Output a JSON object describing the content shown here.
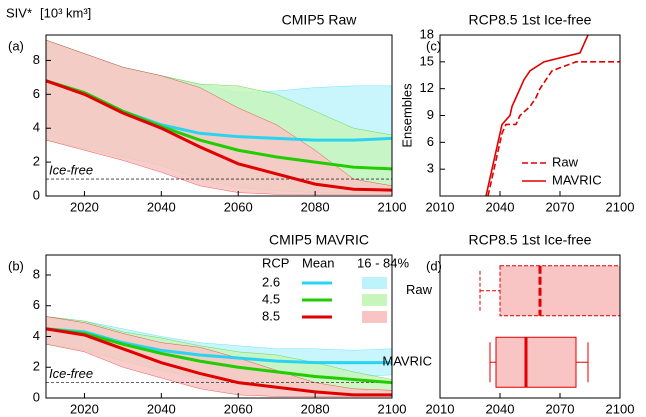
{
  "chart_data": [
    {
      "type": "band-line",
      "panel_label": "(a)",
      "title": "CMIP5 Raw",
      "ylabel": "SIV*",
      "ylabel_unit": "[10³ km³]",
      "x": [
        2010,
        2020,
        2030,
        2040,
        2050,
        2060,
        2070,
        2080,
        2090,
        2100
      ],
      "xlim": [
        2010,
        2100
      ],
      "xticks": [
        2020,
        2040,
        2060,
        2080,
        2100
      ],
      "ylim": [
        0,
        9.5
      ],
      "yticks": [
        0,
        2,
        4,
        6,
        8
      ],
      "threshold": 1,
      "threshold_label": "Ice-free",
      "series": [
        {
          "color": "#2ad4f0",
          "band_color": "#bff3fb",
          "values": [
            6.8,
            6.1,
            5.0,
            4.2,
            3.7,
            3.5,
            3.4,
            3.3,
            3.3,
            3.4
          ],
          "lower": [
            3.3,
            2.8,
            2.4,
            2.0,
            1.5,
            1.2,
            1.1,
            0.9,
            0.6,
            0.7
          ],
          "upper": [
            9.2,
            8.4,
            7.6,
            7.1,
            6.6,
            6.1,
            6.2,
            6.4,
            6.5,
            6.5
          ]
        },
        {
          "color": "#22cc00",
          "band_color": "#c8f5bc",
          "values": [
            6.8,
            6.1,
            5.0,
            4.1,
            3.3,
            2.7,
            2.3,
            2.0,
            1.7,
            1.6
          ],
          "lower": [
            3.3,
            2.8,
            2.3,
            1.8,
            1.0,
            0.5,
            0.3,
            0.2,
            0.2,
            0.2
          ],
          "upper": [
            9.2,
            8.4,
            7.6,
            7.1,
            6.6,
            6.5,
            6.0,
            5.0,
            4.0,
            3.6
          ]
        },
        {
          "color": "#e00000",
          "band_color": "#f9c4c4",
          "values": [
            6.8,
            6.0,
            4.9,
            4.0,
            2.9,
            1.9,
            1.3,
            0.7,
            0.4,
            0.35
          ],
          "lower": [
            3.3,
            2.7,
            2.1,
            1.4,
            0.6,
            0.2,
            0.1,
            0.1,
            0.1,
            0.1
          ],
          "upper": [
            9.2,
            8.4,
            7.6,
            7.1,
            6.4,
            5.2,
            4.2,
            2.7,
            1.0,
            0.6
          ]
        }
      ]
    },
    {
      "type": "band-line",
      "panel_label": "(b)",
      "title": "CMIP5 MAVRIC",
      "x": [
        2010,
        2020,
        2030,
        2040,
        2050,
        2060,
        2070,
        2080,
        2090,
        2100
      ],
      "xlim": [
        2010,
        2100
      ],
      "xticks": [
        2020,
        2040,
        2060,
        2080,
        2100
      ],
      "ylim": [
        0,
        9.3
      ],
      "yticks": [
        0,
        2,
        4,
        6,
        8
      ],
      "threshold": 1,
      "threshold_label": "Ice-free",
      "legend": {
        "title": "RCP",
        "mean_label": "Mean",
        "band_label": "16 - 84%"
      },
      "series": [
        {
          "name": "2.6",
          "color": "#2ad4f0",
          "band_color": "#bff3fb",
          "values": [
            4.5,
            4.3,
            3.6,
            3.1,
            2.8,
            2.6,
            2.4,
            2.3,
            2.3,
            2.3
          ],
          "lower": [
            3.5,
            3.1,
            2.6,
            2.2,
            1.9,
            1.6,
            1.5,
            1.4,
            1.4,
            1.5
          ],
          "upper": [
            5.3,
            5.0,
            4.5,
            4.0,
            3.6,
            3.4,
            3.2,
            3.2,
            3.1,
            3.2
          ]
        },
        {
          "name": "4.5",
          "color": "#22cc00",
          "band_color": "#c8f5bc",
          "values": [
            4.5,
            4.2,
            3.5,
            2.9,
            2.4,
            2.0,
            1.7,
            1.4,
            1.2,
            1.0
          ],
          "lower": [
            3.5,
            3.1,
            2.4,
            1.8,
            1.3,
            1.0,
            0.7,
            0.5,
            0.5,
            0.4
          ],
          "upper": [
            5.3,
            5.0,
            4.3,
            3.9,
            3.4,
            3.0,
            2.8,
            2.3,
            1.7,
            1.2
          ]
        },
        {
          "name": "8.5",
          "color": "#e00000",
          "band_color": "#f9c4c4",
          "values": [
            4.5,
            4.1,
            3.2,
            2.3,
            1.6,
            1.0,
            0.7,
            0.4,
            0.2,
            0.2
          ],
          "lower": [
            3.5,
            3.0,
            2.0,
            1.3,
            0.6,
            0.2,
            0.1,
            0.1,
            0.1,
            0.1
          ],
          "upper": [
            5.3,
            4.9,
            4.2,
            3.6,
            3.3,
            2.6,
            1.8,
            1.0,
            0.6,
            0.5
          ]
        }
      ]
    },
    {
      "type": "step",
      "panel_label": "(c)",
      "title": "RCP8.5 1st Ice-free",
      "ylabel": "Ensembles",
      "xlim": [
        2010,
        2100
      ],
      "xticks": [
        2010,
        2040,
        2070,
        2100
      ],
      "ylim": [
        0,
        18
      ],
      "yticks": [
        3,
        6,
        9,
        12,
        15,
        18
      ],
      "series": [
        {
          "name": "Raw",
          "color": "#e00000",
          "dash": true,
          "x": [
            2034,
            2035,
            2036,
            2037,
            2038,
            2039,
            2040,
            2041,
            2043,
            2048,
            2050,
            2055,
            2058,
            2060,
            2063,
            2066,
            2078,
            2100
          ],
          "values": [
            0,
            1,
            2,
            3,
            4,
            5,
            6,
            7,
            8,
            8,
            9,
            10,
            11,
            12,
            13,
            14,
            15,
            15
          ]
        },
        {
          "name": "MAVRIC",
          "color": "#e00000",
          "dash": false,
          "x": [
            2033,
            2034,
            2035,
            2036,
            2037,
            2038,
            2039,
            2040,
            2041,
            2045,
            2046,
            2048,
            2050,
            2052,
            2055,
            2062,
            2080,
            2082,
            2084
          ],
          "values": [
            0,
            1,
            2,
            3,
            4,
            5,
            6,
            7,
            8,
            9,
            10,
            11,
            12,
            13,
            14,
            15,
            16,
            17,
            18
          ]
        }
      ]
    },
    {
      "type": "box",
      "panel_label": "(d)",
      "title": "RCP8.5 1st Ice-free",
      "xlim": [
        2010,
        2100
      ],
      "xticks": [
        2010,
        2040,
        2070,
        2100
      ],
      "color": "#e00000",
      "fill": "#f9c4c4",
      "categories": [
        "Raw",
        "MAVRIC"
      ],
      "boxes": [
        {
          "min": 2030,
          "q1": 2040,
          "median": 2060,
          "q3": 2100,
          "max": 2100,
          "dash": true
        },
        {
          "min": 2035,
          "q1": 2038,
          "median": 2053,
          "q3": 2078,
          "max": 2084,
          "dash": false
        }
      ]
    }
  ]
}
